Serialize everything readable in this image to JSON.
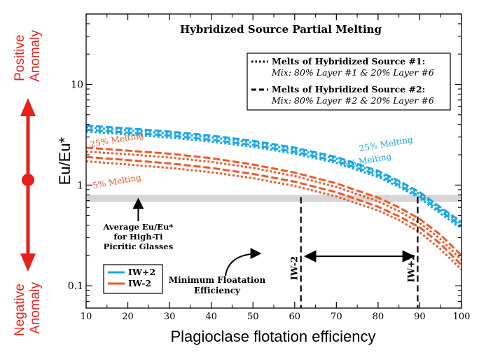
{
  "chart_data": {
    "type": "line",
    "title": "Hybridized Source Partial Melting",
    "xlabel": "Plagioclase flotation efficiency",
    "ylabel": "Eu/Eu*",
    "xlim": [
      10,
      100
    ],
    "ylim": [
      0.06,
      50
    ],
    "yscale": "log",
    "x_ticks": [
      10,
      20,
      30,
      40,
      50,
      60,
      70,
      80,
      90,
      100
    ],
    "y_ticks": [
      {
        "v": 0.1,
        "label": "0.1"
      },
      {
        "v": 1,
        "label": "1"
      },
      {
        "v": 10,
        "label": "10"
      }
    ],
    "grid": false,
    "colors": {
      "IW+2": "#1aa7e6",
      "IW-2": "#ee5a2a",
      "axis": "#000000",
      "band": "#d6d6d6",
      "anomaly": "#e8201a"
    },
    "legend_linestyle": [
      {
        "style": "dotted",
        "label": "Melts of Hybridized Source #1:",
        "sublabel": "Mix: 80% Layer #1 & 20% Layer #6"
      },
      {
        "style": "dashed",
        "label": "Melts of Hybridized Source #2:",
        "sublabel": "Mix: 80% Layer #2 & 20% Layer #6"
      }
    ],
    "legend_color": [
      {
        "color": "#1aa7e6",
        "label": "IW+2"
      },
      {
        "color": "#ee5a2a",
        "label": "IW-2"
      }
    ],
    "x": [
      10,
      20,
      30,
      40,
      50,
      60,
      70,
      80,
      85,
      90,
      95,
      100
    ],
    "series": [
      {
        "name": "IW+2",
        "melting": "25%",
        "source": 2,
        "style": "dashed",
        "values": [
          3.9,
          3.65,
          3.4,
          3.1,
          2.75,
          2.35,
          1.9,
          1.38,
          1.1,
          0.85,
          0.6,
          0.43
        ]
      },
      {
        "name": "IW+2",
        "melting": "25%",
        "source": 1,
        "style": "dotted",
        "values": [
          3.75,
          3.5,
          3.26,
          2.98,
          2.64,
          2.26,
          1.83,
          1.33,
          1.06,
          0.82,
          0.58,
          0.41
        ]
      },
      {
        "name": "IW+2",
        "melting": "5%",
        "source": 2,
        "style": "dashed",
        "values": [
          3.55,
          3.32,
          3.1,
          2.82,
          2.5,
          2.14,
          1.73,
          1.26,
          1.0,
          0.77,
          0.55,
          0.39
        ]
      },
      {
        "name": "IW+2",
        "melting": "5%",
        "source": 1,
        "style": "dotted",
        "values": [
          3.4,
          3.18,
          2.96,
          2.7,
          2.4,
          2.05,
          1.66,
          1.2,
          0.96,
          0.74,
          0.52,
          0.37
        ]
      },
      {
        "name": "IW-2",
        "melting": "25%",
        "source": 2,
        "style": "dashed",
        "values": [
          2.35,
          2.2,
          2.05,
          1.85,
          1.6,
          1.33,
          1.04,
          0.75,
          0.6,
          0.46,
          0.32,
          0.2
        ]
      },
      {
        "name": "IW-2",
        "melting": "25%",
        "source": 1,
        "style": "dotted",
        "values": [
          2.15,
          2.02,
          1.88,
          1.7,
          1.48,
          1.23,
          0.96,
          0.69,
          0.55,
          0.42,
          0.29,
          0.18
        ]
      },
      {
        "name": "IW-2",
        "melting": "5%",
        "source": 2,
        "style": "dashed",
        "values": [
          1.9,
          1.77,
          1.64,
          1.48,
          1.29,
          1.08,
          0.85,
          0.61,
          0.49,
          0.38,
          0.26,
          0.16
        ]
      },
      {
        "name": "IW-2",
        "melting": "5%",
        "source": 1,
        "style": "dotted",
        "values": [
          1.72,
          1.6,
          1.48,
          1.34,
          1.17,
          0.98,
          0.77,
          0.56,
          0.45,
          0.34,
          0.23,
          0.145
        ]
      }
    ],
    "band": {
      "y_min": 0.68,
      "y_max": 0.8,
      "label": [
        "Average Eu/Eu*",
        "for High-Ti",
        "Picritic Glasses"
      ]
    },
    "vlines": [
      {
        "x": 61.5,
        "label": "IW-2"
      },
      {
        "x": 89.5,
        "label": "IW+2"
      }
    ],
    "annotations": {
      "melt_labels": [
        {
          "text": "25% Melting",
          "color": "#1aa7e6",
          "x": 82,
          "y": 2.4
        },
        {
          "text": "5% Melting",
          "color": "#1aa7e6",
          "x": 77.5,
          "y": 1.65
        },
        {
          "text": "25% Melting",
          "color": "#ee5a2a",
          "x": 17.5,
          "y": 2.65
        },
        {
          "text": "5% Melting",
          "color": "#ee5a2a",
          "x": 17.5,
          "y": 1.02
        }
      ],
      "min_floatation": [
        "Minimum Floatation",
        "Efficiency"
      ]
    },
    "anomaly_axis": {
      "top": [
        "Positive",
        "Anomaly"
      ],
      "bottom": [
        "Negative",
        "Anomaly"
      ]
    }
  }
}
